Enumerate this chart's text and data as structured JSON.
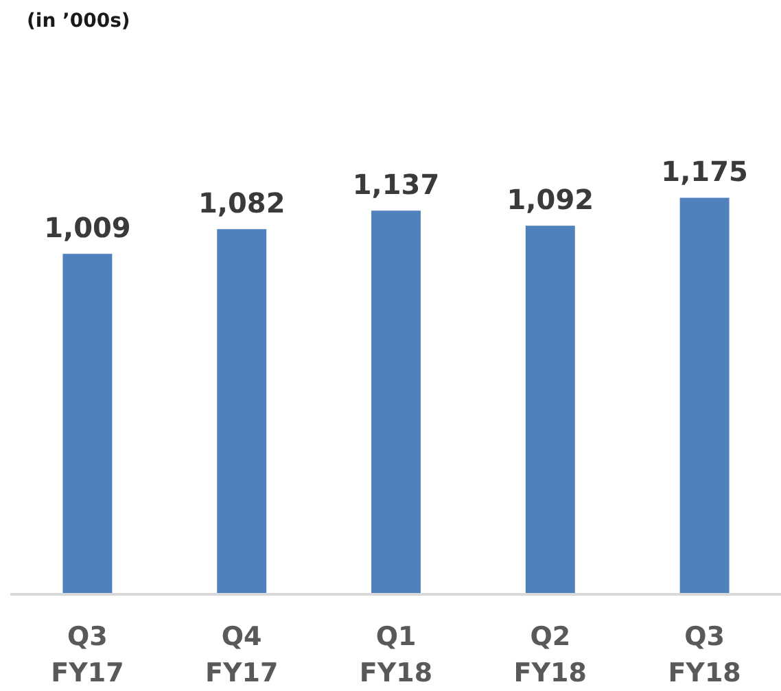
{
  "chart_data": {
    "type": "bar",
    "subtitle": "(in ’000s)",
    "categories": [
      "Q3\nFY17",
      "Q4\nFY17",
      "Q1\nFY18",
      "Q2\nFY18",
      "Q3\nFY18"
    ],
    "values": [
      1009,
      1082,
      1137,
      1092,
      1175
    ],
    "color": "#4f81bd",
    "value_labels": [
      "1,009",
      "1,082",
      "1,137",
      "1,092",
      "1,175"
    ],
    "tick_labels": "x"
  }
}
